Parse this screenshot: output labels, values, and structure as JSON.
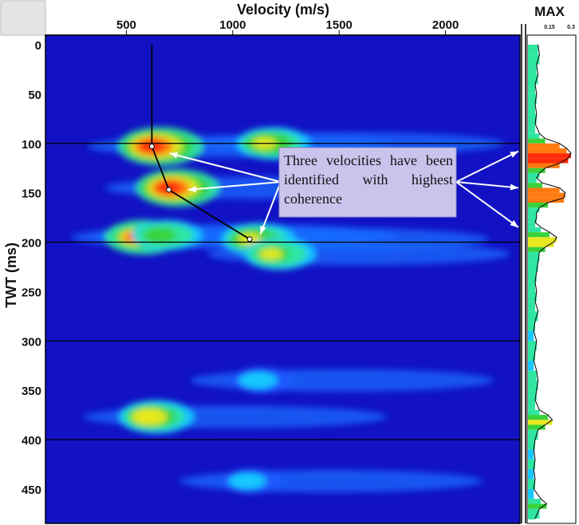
{
  "chart_data": [
    {
      "type": "heatmap",
      "title": "",
      "xlabel": "Velocity (m/s)",
      "ylabel": "TWT (ms)",
      "xlim": [
        120,
        2350
      ],
      "ylim": [
        0,
        480
      ],
      "x_ticks": [
        "500",
        "1000",
        "1500",
        "2000"
      ],
      "x_tick_values": [
        500,
        1000,
        1500,
        2000
      ],
      "y_ticks": [
        "0",
        "50",
        "100",
        "150",
        "200",
        "250",
        "300",
        "350",
        "400",
        "450"
      ],
      "y_tick_values": [
        0,
        50,
        100,
        150,
        200,
        250,
        300,
        350,
        400,
        450
      ],
      "horizontal_lines": [
        100,
        200,
        300,
        400
      ],
      "colormap": [
        "#1010c8",
        "#1e5aff",
        "#19c8ff",
        "#2ee6a0",
        "#3ad23a",
        "#e8e820",
        "#ff7a10",
        "#ff2a08"
      ],
      "coherence_maxima": [
        {
          "velocity": 620,
          "twt": 103,
          "strength": 1.0
        },
        {
          "velocity": 700,
          "twt": 145,
          "strength": 0.95
        },
        {
          "velocity": 1080,
          "twt": 197,
          "strength": 0.7
        },
        {
          "velocity": 1150,
          "twt": 100,
          "strength": 0.7
        },
        {
          "velocity": 1180,
          "twt": 212,
          "strength": 0.65
        },
        {
          "velocity": 600,
          "twt": 377,
          "strength": 0.75
        },
        {
          "velocity": 540,
          "twt": 195,
          "strength": 0.8
        },
        {
          "velocity": 650,
          "twt": 193,
          "strength": 0.6
        },
        {
          "velocity": 1100,
          "twt": 340,
          "strength": 0.35
        },
        {
          "velocity": 1050,
          "twt": 442,
          "strength": 0.3
        }
      ],
      "velocity_picks": [
        {
          "velocity": 620,
          "twt": 0
        },
        {
          "velocity": 620,
          "twt": 103
        },
        {
          "velocity": 700,
          "twt": 147
        },
        {
          "velocity": 1080,
          "twt": 197
        }
      ],
      "annotation": "Three velocities have been identified with highest coherence"
    },
    {
      "type": "line",
      "title": "MAX",
      "xlabel": "",
      "ylabel": "",
      "xlim": [
        0,
        0.3
      ],
      "x_ticks": [
        "0.15",
        "0.3"
      ],
      "x_tick_values": [
        0.15,
        0.3
      ],
      "twt": [
        0,
        10,
        20,
        30,
        40,
        50,
        60,
        70,
        80,
        90,
        95,
        100,
        105,
        110,
        115,
        120,
        125,
        130,
        135,
        140,
        145,
        150,
        155,
        160,
        165,
        170,
        175,
        180,
        185,
        190,
        195,
        200,
        205,
        210,
        220,
        230,
        240,
        250,
        260,
        270,
        280,
        290,
        300,
        310,
        320,
        330,
        340,
        350,
        360,
        370,
        375,
        380,
        385,
        390,
        400,
        410,
        420,
        430,
        440,
        450,
        460,
        465,
        470,
        480
      ],
      "values": [
        0.07,
        0.08,
        0.06,
        0.07,
        0.05,
        0.06,
        0.05,
        0.06,
        0.05,
        0.08,
        0.12,
        0.22,
        0.27,
        0.3,
        0.28,
        0.22,
        0.12,
        0.08,
        0.06,
        0.1,
        0.22,
        0.26,
        0.25,
        0.14,
        0.08,
        0.06,
        0.06,
        0.05,
        0.09,
        0.15,
        0.2,
        0.18,
        0.12,
        0.08,
        0.07,
        0.06,
        0.05,
        0.06,
        0.05,
        0.07,
        0.05,
        0.04,
        0.06,
        0.05,
        0.04,
        0.06,
        0.07,
        0.06,
        0.05,
        0.08,
        0.14,
        0.17,
        0.12,
        0.07,
        0.05,
        0.04,
        0.05,
        0.04,
        0.05,
        0.04,
        0.09,
        0.13,
        0.08,
        0.05
      ]
    }
  ]
}
